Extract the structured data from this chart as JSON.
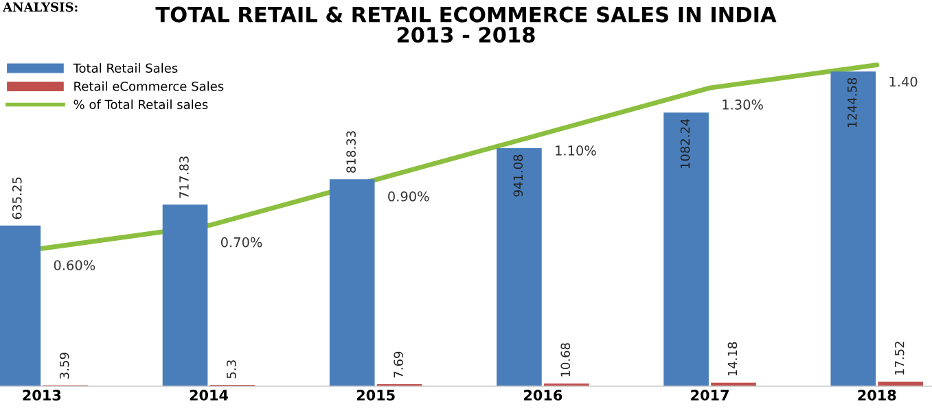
{
  "chart_data": {
    "type": "bar",
    "title": "TOTAL RETAIL & RETAIL ECOMMERCE SALES IN INDIA\n2013 - 2018",
    "categories": [
      "2013",
      "2014",
      "2015",
      "2016",
      "2017",
      "2018"
    ],
    "series": [
      {
        "name": "Total Retail Sales",
        "color": "#4a7ebb",
        "values": [
          635.25,
          717.83,
          818.33,
          941.08,
          1082.24,
          1244.58
        ]
      },
      {
        "name": "Retail eCommerce Sales",
        "color": "#c0504d",
        "values": [
          3.59,
          5.3,
          7.69,
          10.68,
          14.18,
          17.52
        ]
      },
      {
        "name": "% of Total Retail sales",
        "type": "line",
        "axis": "y2",
        "color": "#8cbf3f",
        "values": [
          0.6,
          0.7,
          0.9,
          1.1,
          1.3,
          1.4
        ],
        "value_labels": [
          "0.60%",
          "0.70%",
          "0.90%",
          "1.10%",
          "1.30%",
          "1.40"
        ]
      }
    ],
    "data_labels": true,
    "tick_labels": "x",
    "legend": "top left",
    "grid": false,
    "annotations": [
      "ANALYSIS:"
    ]
  }
}
